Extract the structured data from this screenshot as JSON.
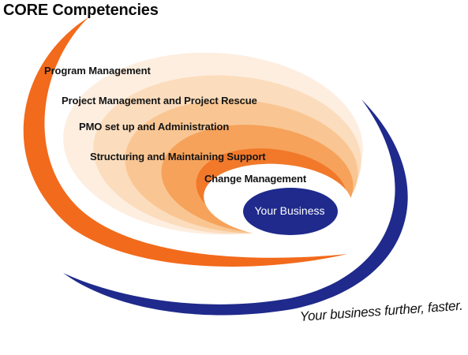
{
  "title": "CORE Competencies",
  "competencies": [
    "Program Management",
    "Project Management and Project Rescue",
    "PMO set up and Administration",
    "Structuring and Maintaining Support",
    "Change Management"
  ],
  "center": "Your Business",
  "tagline": "Your business further, faster.",
  "colors": {
    "orange": "#f26a1b",
    "navy": "#1f2a8c",
    "ring1": "#fdeee0",
    "ring2": "#fbd9b8",
    "ring3": "#f8b579",
    "ring4": "#f48a3e"
  }
}
